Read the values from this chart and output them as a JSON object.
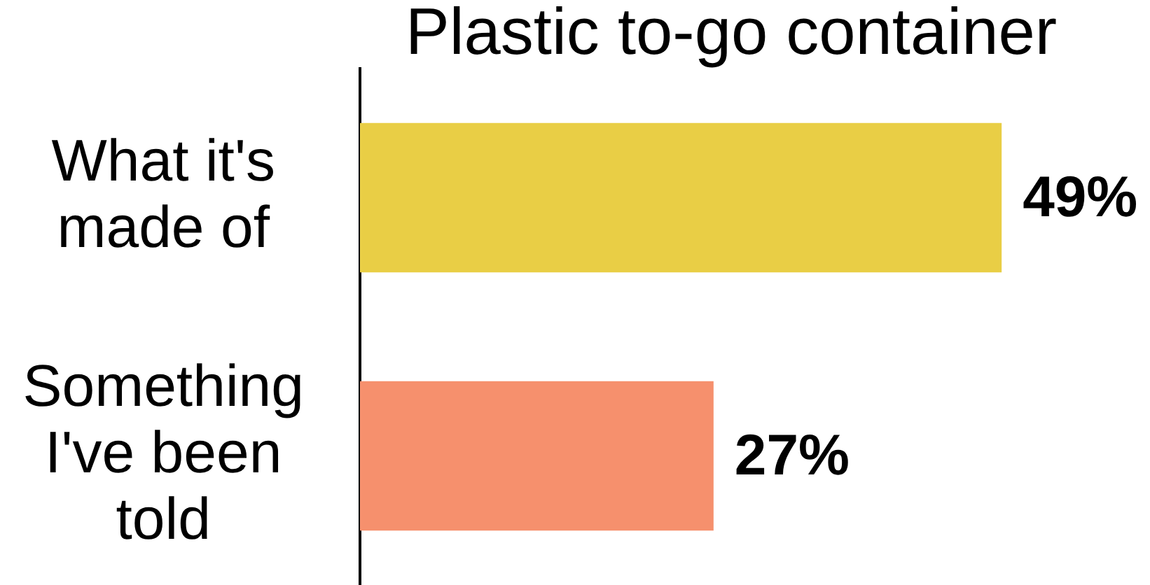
{
  "chart_data": {
    "type": "bar",
    "orientation": "horizontal",
    "title": "Plastic to-go container",
    "categories": [
      "What it's made of",
      "Something I've been told"
    ],
    "values": [
      49,
      27
    ],
    "colors": [
      "#e9ce45",
      "#f6906d"
    ],
    "value_labels": [
      "49%",
      "27%"
    ],
    "tick_labels": "y"
  }
}
